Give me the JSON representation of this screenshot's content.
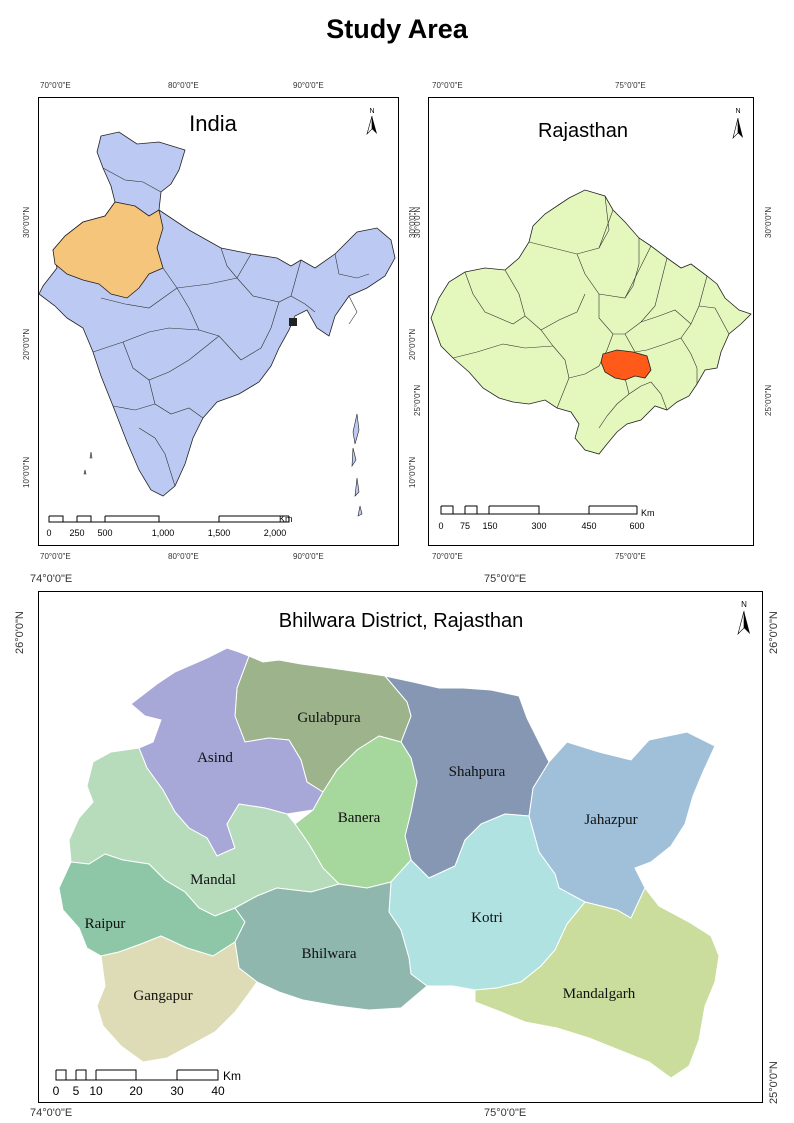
{
  "title": "Study Area",
  "india": {
    "title": "India",
    "top_ticks": [
      "70°0'0\"E",
      "80°0'0\"E",
      "90°0'0\"E"
    ],
    "bottom_ticks": [
      "70°0'0\"E",
      "80°0'0\"E",
      "90°0'0\"E"
    ],
    "left_ticks": [
      "30°0'0\"N",
      "20°0'0\"N",
      "10°0'0\"N"
    ],
    "right_ticks": [
      "30°0'0\"N",
      "20°0'0\"N",
      "10°0'0\"N"
    ],
    "scale_labels": [
      "0",
      "250",
      "500",
      "1,000",
      "1,500",
      "2,000"
    ],
    "scale_unit": "Km",
    "north": "N",
    "colors": {
      "land": "#bcc9f2",
      "highlight": "#f5c57c"
    }
  },
  "rajasthan": {
    "title": "Rajasthan",
    "top_ticks": [
      "70°0'0\"E",
      "75°0'0\"E"
    ],
    "bottom_ticks": [
      "70°0'0\"E",
      "75°0'0\"E"
    ],
    "left_ticks": [
      "30°0'0\"N",
      "25°0'0\"N"
    ],
    "right_ticks": [
      "30°0'0\"N",
      "25°0'0\"N"
    ],
    "scale_labels": [
      "0",
      "75",
      "150",
      "300",
      "450",
      "600"
    ],
    "scale_unit": "Km",
    "north": "N",
    "colors": {
      "land": "#e4f7bc",
      "highlight": "#ff5a1a"
    }
  },
  "bhilwara": {
    "title": "Bhilwara District, Rajasthan",
    "top_ticks": [
      "74°0'0\"E",
      "75°0'0\"E"
    ],
    "bottom_ticks": [
      "74°0'0\"E",
      "75°0'0\"E"
    ],
    "left_ticks": [
      "26°0'0\"N"
    ],
    "right_ticks": [
      "26°0'0\"N",
      "25°0'0\"N"
    ],
    "scale_labels": [
      "0",
      "5",
      "10",
      "20",
      "30",
      "40"
    ],
    "scale_unit": "Km",
    "north": "N",
    "districts": [
      {
        "name": "Gulabpura",
        "color": "#9db38b"
      },
      {
        "name": "Asind",
        "color": "#a8a8d8"
      },
      {
        "name": "Shahpura",
        "color": "#8597b2"
      },
      {
        "name": "Banera",
        "color": "#a6d79d"
      },
      {
        "name": "Jahazpur",
        "color": "#a0c0da"
      },
      {
        "name": "Mandal",
        "color": "#b7dcbc"
      },
      {
        "name": "Kotri",
        "color": "#b0e2e2"
      },
      {
        "name": "Raipur",
        "color": "#8ec7a8"
      },
      {
        "name": "Bhilwara",
        "color": "#8fb7ad"
      },
      {
        "name": "Gangapur",
        "color": "#dedcb6"
      },
      {
        "name": "Mandalgarh",
        "color": "#cadd9c"
      }
    ]
  }
}
